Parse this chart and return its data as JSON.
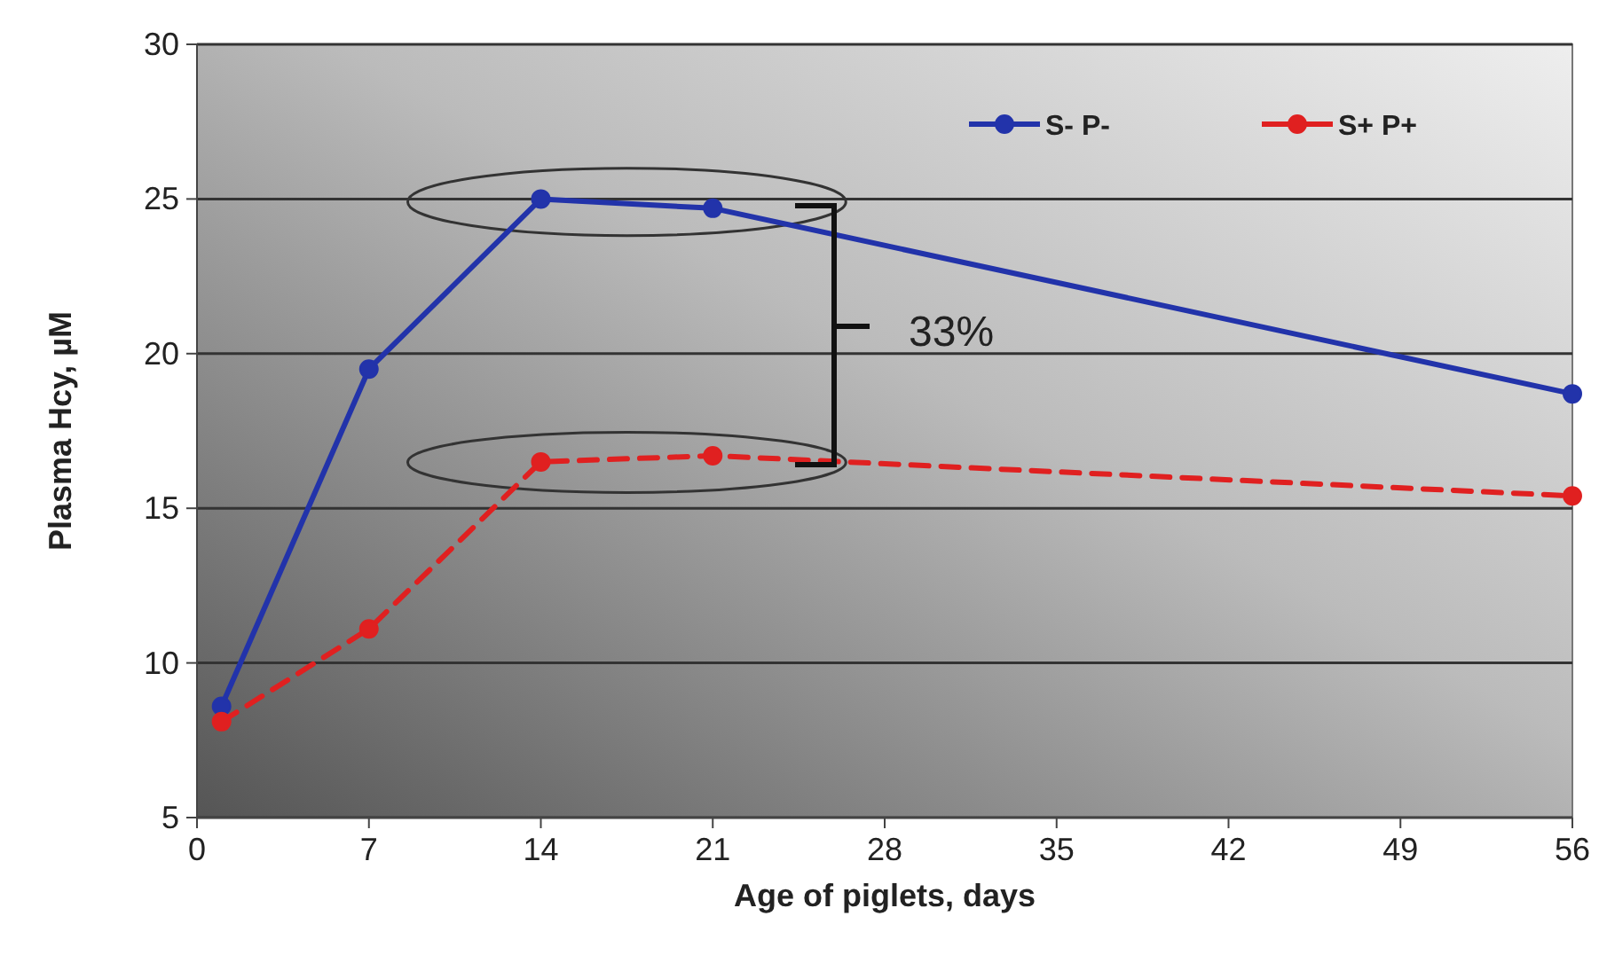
{
  "chart_data": {
    "type": "line",
    "xlabel": "Age of piglets, days",
    "ylabel": "Plasma Hcy, µM",
    "x": [
      1,
      7,
      14,
      21,
      56
    ],
    "series": [
      {
        "name": "S- P-",
        "color": "#2233aa",
        "values": [
          8.6,
          19.5,
          25.0,
          24.7,
          18.7
        ],
        "line_style": "solid"
      },
      {
        "name": "S+ P+",
        "color": "#e02020",
        "values": [
          8.1,
          11.1,
          16.5,
          16.7,
          15.4
        ],
        "line_style": "dashed"
      }
    ],
    "annotations": [
      "33%"
    ],
    "xlim": [
      0,
      56
    ],
    "xticks": [
      0,
      7,
      14,
      21,
      28,
      35,
      42,
      49,
      56
    ],
    "ylim": [
      5,
      30
    ],
    "yticks": [
      5,
      10,
      15,
      20,
      25,
      30
    ],
    "grid": "y",
    "legend": "top right",
    "marker": "circle"
  }
}
